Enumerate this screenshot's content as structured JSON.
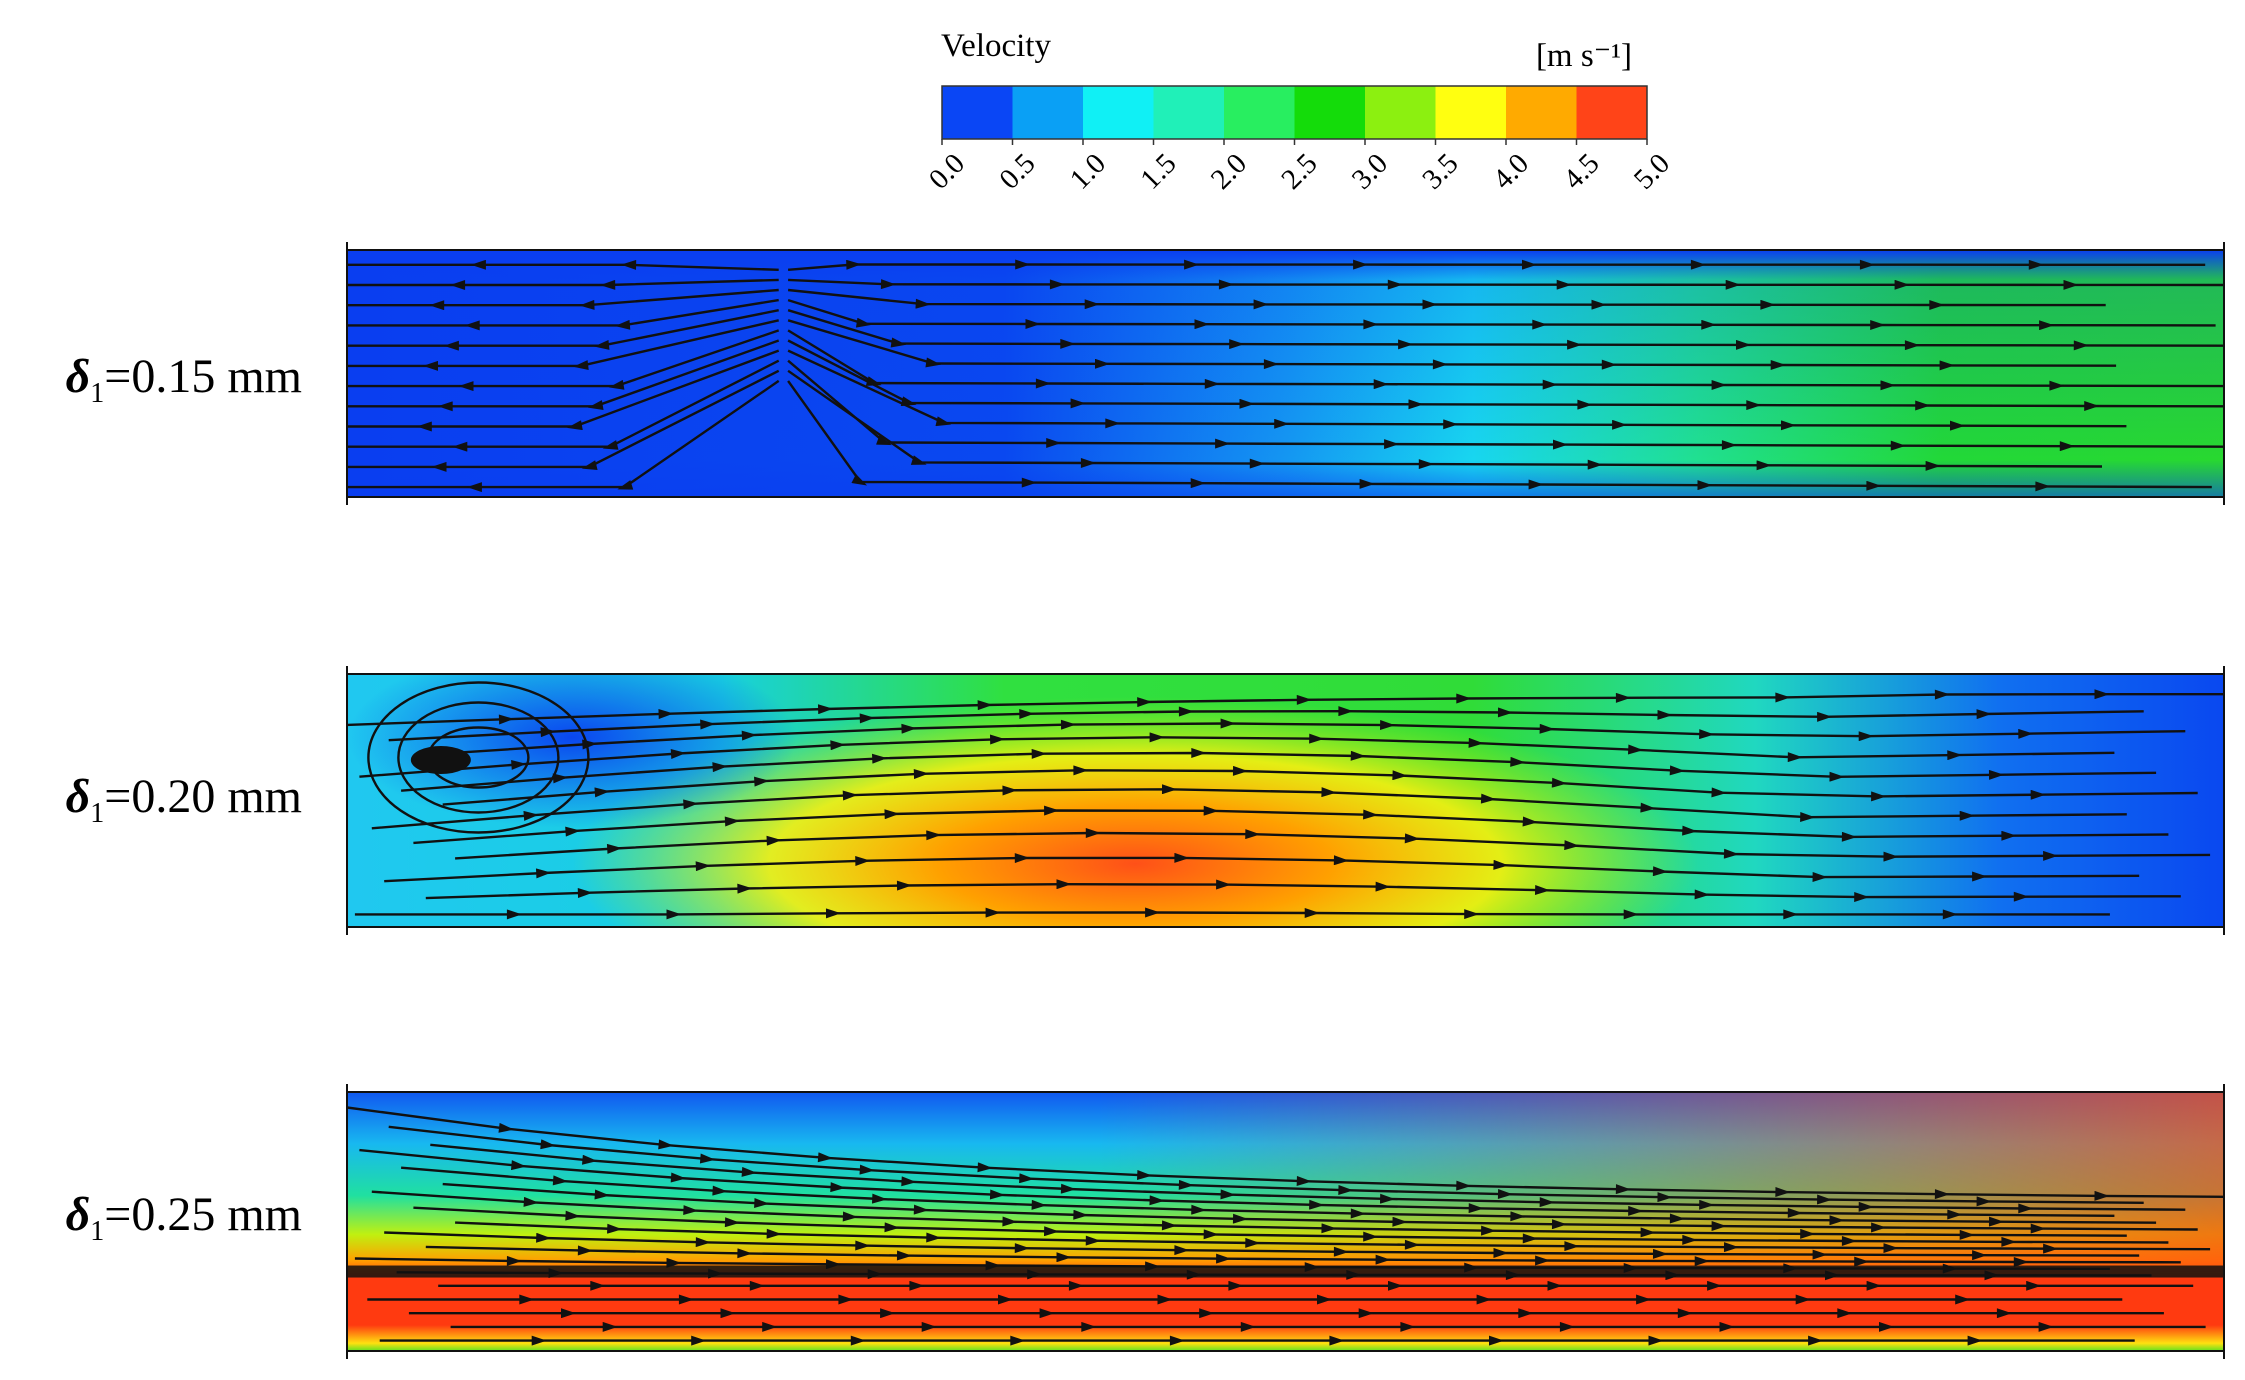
{
  "colorbar": {
    "title": "Velocity",
    "unit": "[m s⁻¹]",
    "ticks": [
      "0.0",
      "0.5",
      "1.0",
      "1.5",
      "2.0",
      "2.5",
      "3.0",
      "3.5",
      "4.0",
      "4.5",
      "5.0"
    ],
    "colors": [
      "#0a46f5",
      "#0aa0f5",
      "#10f0f5",
      "#20f0b8",
      "#28ee60",
      "#14dc0a",
      "#8cf010",
      "#ffff10",
      "#ffaa00",
      "#ff4418"
    ]
  },
  "panels": [
    {
      "symbol": "δ",
      "subscript": "1",
      "text": "=0.15 mm"
    },
    {
      "symbol": "δ",
      "subscript": "1",
      "text": "=0.20 mm"
    },
    {
      "symbol": "δ",
      "subscript": "1",
      "text": "=0.25 mm"
    }
  ]
}
